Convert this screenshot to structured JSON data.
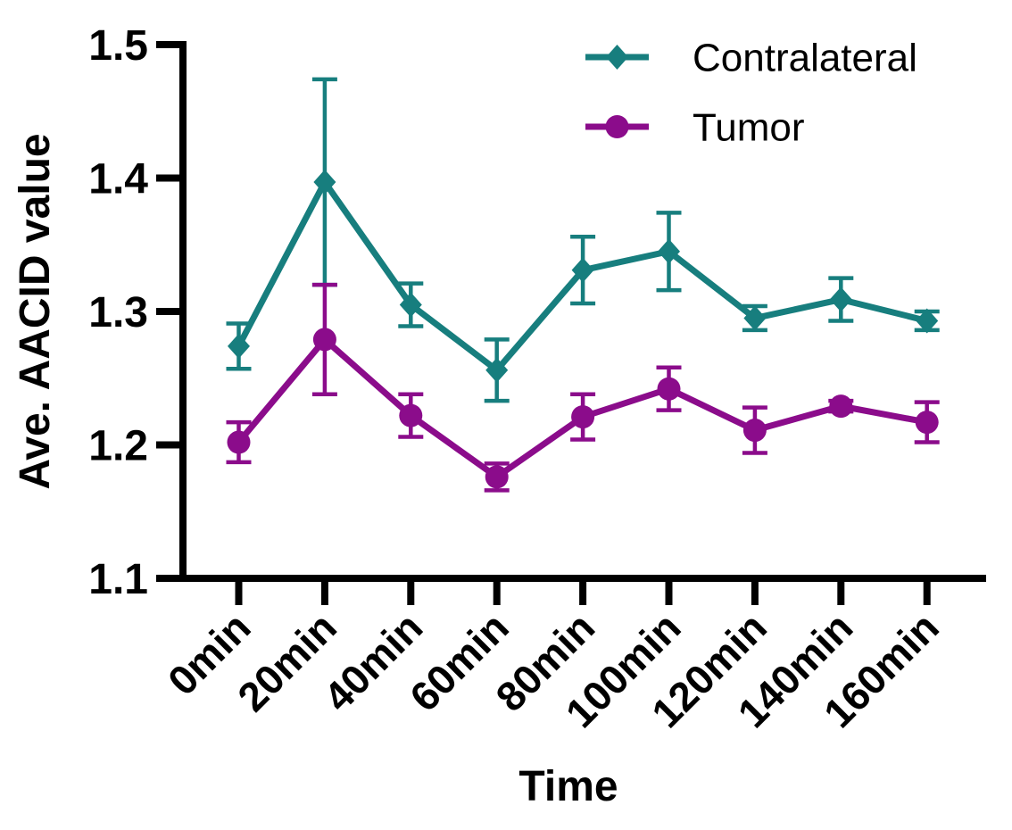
{
  "chart_data": {
    "type": "line",
    "title": "",
    "xlabel": "Time",
    "ylabel": "Ave. AACID value",
    "categories": [
      "0min",
      "20min",
      "40min",
      "60min",
      "80min",
      "100min",
      "120min",
      "140min",
      "160min"
    ],
    "yticks": [
      "1.1",
      "1.2",
      "1.3",
      "1.4",
      "1.5"
    ],
    "ytick_values": [
      1.1,
      1.2,
      1.3,
      1.4,
      1.5
    ],
    "ylim": [
      1.1,
      1.5
    ],
    "grid": false,
    "error_bars": true,
    "legend_position": "top-right-inside",
    "series": [
      {
        "name": "Contralateral",
        "marker": "diamond",
        "color": "#177E7E",
        "values": [
          1.274,
          1.397,
          1.305,
          1.256,
          1.331,
          1.345,
          1.295,
          1.309,
          1.293
        ],
        "errors": [
          0.017,
          0.077,
          0.016,
          0.023,
          0.025,
          0.029,
          0.009,
          0.016,
          0.007
        ]
      },
      {
        "name": "Tumor",
        "marker": "circle",
        "color": "#8B0C8B",
        "values": [
          1.202,
          1.279,
          1.222,
          1.176,
          1.221,
          1.242,
          1.211,
          1.229,
          1.217
        ],
        "errors": [
          0.015,
          0.041,
          0.016,
          0.01,
          0.017,
          0.016,
          0.017,
          0.004,
          0.015
        ]
      }
    ],
    "axis_color": "#000000",
    "background_color": "#FFFFFF"
  }
}
